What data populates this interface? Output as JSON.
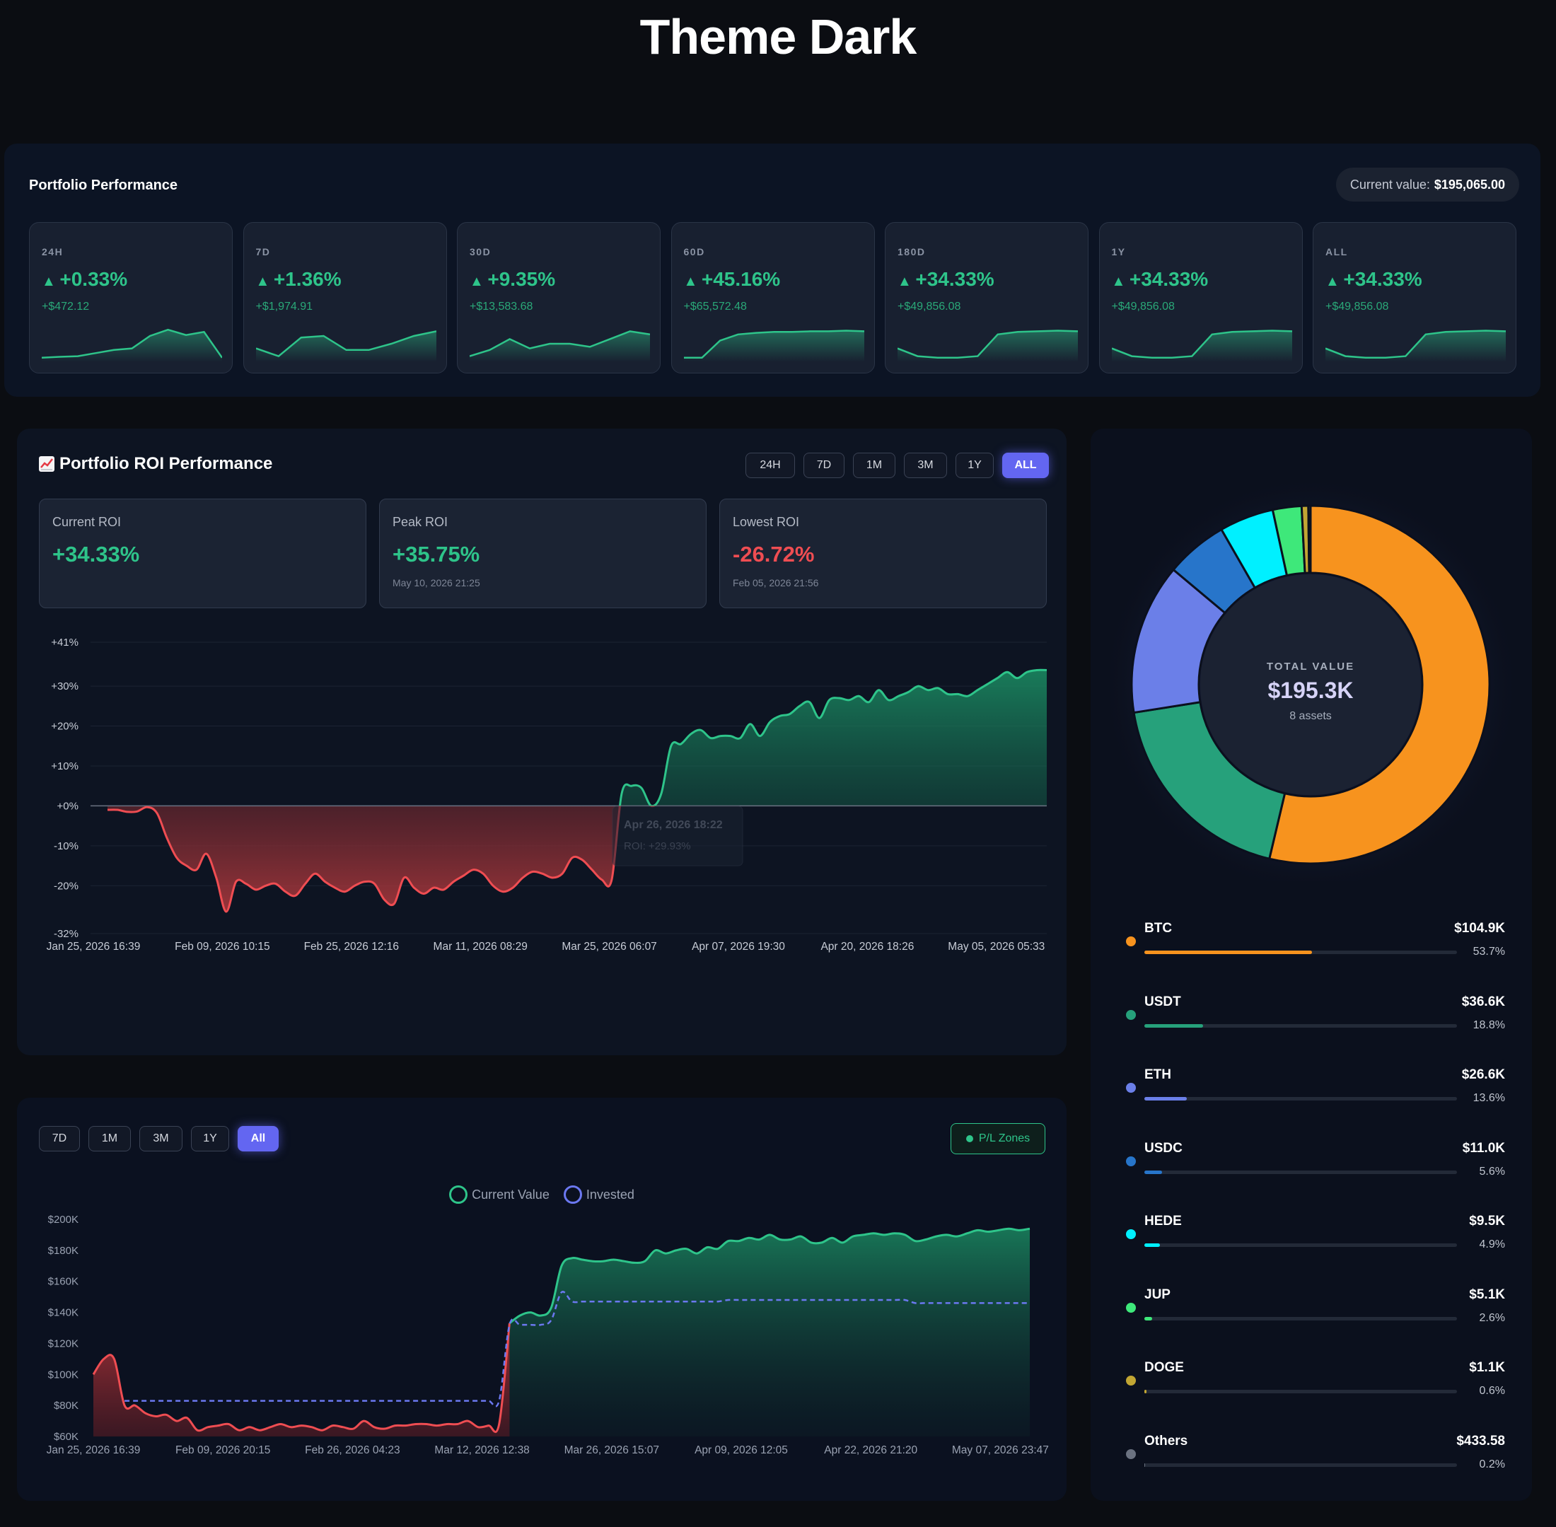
{
  "page_title": "Theme Dark",
  "performance": {
    "title": "Portfolio Performance",
    "current_label": "Current value:",
    "current_value": "$195,065.00",
    "periods": [
      {
        "label": "24H",
        "pct": "+0.33%",
        "usd": "+$472.12",
        "spark": [
          0.05,
          0.08,
          0.1,
          0.2,
          0.3,
          0.35,
          0.75,
          0.95,
          0.78,
          0.88,
          0.05
        ]
      },
      {
        "label": "7D",
        "pct": "+1.36%",
        "usd": "+$1,974.91",
        "spark": [
          0.35,
          0.1,
          0.7,
          0.75,
          0.3,
          0.3,
          0.5,
          0.75,
          0.9
        ]
      },
      {
        "label": "30D",
        "pct": "+9.35%",
        "usd": "+$13,583.68",
        "spark": [
          0.1,
          0.3,
          0.65,
          0.35,
          0.5,
          0.5,
          0.4,
          0.65,
          0.9,
          0.8
        ]
      },
      {
        "label": "60D",
        "pct": "+45.16%",
        "usd": "+$65,572.48",
        "spark": [
          0.05,
          0.05,
          0.6,
          0.8,
          0.85,
          0.88,
          0.88,
          0.9,
          0.9,
          0.92,
          0.9
        ]
      },
      {
        "label": "180D",
        "pct": "+34.33%",
        "usd": "+$49,856.08",
        "spark": [
          0.35,
          0.1,
          0.05,
          0.05,
          0.1,
          0.8,
          0.88,
          0.9,
          0.92,
          0.9
        ]
      },
      {
        "label": "1Y",
        "pct": "+34.33%",
        "usd": "+$49,856.08",
        "spark": [
          0.35,
          0.1,
          0.05,
          0.05,
          0.1,
          0.8,
          0.88,
          0.9,
          0.92,
          0.9
        ]
      },
      {
        "label": "ALL",
        "pct": "+34.33%",
        "usd": "+$49,856.08",
        "spark": [
          0.35,
          0.1,
          0.05,
          0.05,
          0.1,
          0.8,
          0.88,
          0.9,
          0.92,
          0.9
        ]
      }
    ]
  },
  "roi": {
    "icon": "chart-increasing-icon",
    "title": "Portfolio ROI Performance",
    "ranges": [
      "24H",
      "7D",
      "1M",
      "3M",
      "1Y",
      "ALL"
    ],
    "active_range": "ALL",
    "stats": [
      {
        "label": "Current ROI",
        "value": "+34.33%",
        "date": "",
        "tone": "green"
      },
      {
        "label": "Peak ROI",
        "value": "+35.75%",
        "date": "May 10, 2026 21:25",
        "tone": "green"
      },
      {
        "label": "Lowest ROI",
        "value": "-26.72%",
        "date": "Feb 05, 2026 21:56",
        "tone": "red"
      }
    ],
    "tooltip": {
      "date": "Apr 26, 2026 18:22",
      "text": "ROI: +29.93%"
    }
  },
  "chart_data": [
    {
      "type": "area",
      "title": "Portfolio ROI Performance",
      "y_tick_labels": [
        "+41%",
        "+30%",
        "+20%",
        "+10%",
        "+0%",
        "-10%",
        "-20%",
        "-32%"
      ],
      "y_ticks": [
        41,
        30,
        20,
        10,
        0,
        -10,
        -20,
        -32
      ],
      "x_tick_labels": [
        "Jan 25, 2026 16:39",
        "Feb 09, 2026 10:15",
        "Feb 25, 2026 12:16",
        "Mar 11, 2026 08:29",
        "Mar 25, 2026 06:07",
        "Apr 07, 2026 19:30",
        "Apr 20, 2026 18:26",
        "May 05, 2026 05:33"
      ],
      "ylim": [
        -32,
        41
      ],
      "series": [
        {
          "values": [
            -1,
            -1,
            -1.5,
            -1.4,
            -0.3,
            -1.8,
            -8,
            -13,
            -15,
            -16,
            -12,
            -18,
            -26.5,
            -19,
            -19.5,
            -21,
            -20,
            -19.5,
            -21.5,
            -22.5,
            -19.5,
            -17,
            -19,
            -20.5,
            -21.5,
            -20,
            -19,
            -19.5,
            -23.5,
            -24.5,
            -18,
            -20.5,
            -22,
            -20.5,
            -21,
            -19,
            -17.5,
            -16,
            -17,
            -20,
            -21.5,
            -20.5,
            -18,
            -16.5,
            -17,
            -18,
            -17,
            -13,
            -13.5,
            -16,
            -18.5,
            -18.5,
            3,
            5,
            4.5,
            0,
            3,
            15,
            15.5,
            18,
            19,
            17,
            17.5,
            17.5,
            17,
            20.5,
            17.5,
            21,
            22.5,
            23,
            25,
            26,
            22,
            26.5,
            27,
            26.5,
            27.5,
            26,
            29,
            26.5,
            27.5,
            28.5,
            30,
            29,
            29.5,
            28,
            28,
            27.5,
            29,
            30.5,
            32,
            33.5,
            32,
            33.5,
            34,
            34
          ]
        }
      ]
    },
    {
      "type": "area",
      "title": "",
      "legend": [
        "Current Value",
        "Invested"
      ],
      "y_tick_labels": [
        "$200K",
        "$180K",
        "$160K",
        "$140K",
        "$120K",
        "$100K",
        "$80K",
        "$60K"
      ],
      "y_ticks": [
        200,
        180,
        160,
        140,
        120,
        100,
        80,
        60
      ],
      "x_tick_labels": [
        "Jan 25, 2026 16:39",
        "Feb 09, 2026 20:15",
        "Feb 26, 2026 04:23",
        "Mar 12, 2026 12:38",
        "Mar 26, 2026 15:07",
        "Apr 09, 2026 12:05",
        "Apr 22, 2026 21:20",
        "May 07, 2026 23:47"
      ],
      "ylim": [
        60,
        200
      ],
      "series": [
        {
          "name": "Current Value",
          "values": [
            100,
            110,
            110,
            80,
            80,
            75,
            73,
            74,
            70,
            72,
            64,
            66,
            67,
            68,
            64,
            66,
            64,
            66,
            68,
            66,
            67,
            66,
            64,
            67,
            66,
            65,
            70,
            66,
            65,
            67,
            67,
            68,
            68,
            67,
            68,
            68,
            70,
            66,
            67,
            68,
            133,
            138,
            140,
            138,
            143,
            170,
            175,
            174,
            173,
            173,
            174,
            173,
            172,
            173,
            180,
            178,
            180,
            181,
            178,
            182,
            181,
            186,
            186,
            188,
            187,
            190,
            187,
            187,
            189,
            185,
            185,
            188,
            185,
            189,
            190,
            191,
            190,
            191,
            190,
            186,
            187,
            189,
            190,
            189,
            191,
            193,
            192,
            193,
            194,
            193,
            194
          ]
        },
        {
          "name": "Invested",
          "values": [
            null,
            null,
            null,
            83,
            83,
            83,
            83,
            83,
            83,
            83,
            83,
            83,
            83,
            83,
            83,
            83,
            83,
            83,
            83,
            83,
            83,
            83,
            83,
            83,
            83,
            83,
            83,
            83,
            83,
            83,
            83,
            83,
            83,
            83,
            83,
            83,
            83,
            83,
            83,
            83,
            132,
            132,
            132,
            132,
            135,
            153,
            147,
            147,
            147,
            147,
            147,
            147,
            147,
            147,
            147,
            147,
            147,
            147,
            147,
            147,
            147,
            148,
            148,
            148,
            148,
            148,
            148,
            148,
            148,
            148,
            148,
            148,
            148,
            148,
            148,
            148,
            148,
            148,
            148,
            146,
            146,
            146,
            146,
            146,
            146,
            146,
            146,
            146,
            146,
            146,
            146
          ]
        }
      ]
    },
    {
      "type": "pie",
      "center_label": "TOTAL VALUE",
      "center_value": "$195.3K",
      "center_sub": "8 assets",
      "categories": [
        "BTC",
        "USDT",
        "ETH",
        "USDC",
        "HEDE",
        "JUP",
        "DOGE",
        "Others"
      ],
      "values": [
        53.7,
        18.8,
        13.6,
        5.6,
        4.9,
        2.6,
        0.6,
        0.2
      ]
    }
  ],
  "value_chart": {
    "ranges": [
      "7D",
      "1M",
      "3M",
      "1Y",
      "All"
    ],
    "active_range": "All",
    "pl_zones_label": "P/L Zones"
  },
  "allocation": {
    "assets": [
      {
        "name": "BTC",
        "value": "$104.9K",
        "pct": "53.7%",
        "fraction": 0.537,
        "color": "#f7931e"
      },
      {
        "name": "USDT",
        "value": "$36.6K",
        "pct": "18.8%",
        "fraction": 0.188,
        "color": "#26a17b"
      },
      {
        "name": "ETH",
        "value": "$26.6K",
        "pct": "13.6%",
        "fraction": 0.136,
        "color": "#6b7fe8"
      },
      {
        "name": "USDC",
        "value": "$11.0K",
        "pct": "5.6%",
        "fraction": 0.056,
        "color": "#2775ca"
      },
      {
        "name": "HEDE",
        "value": "$9.5K",
        "pct": "4.9%",
        "fraction": 0.049,
        "color": "#00f0ff"
      },
      {
        "name": "JUP",
        "value": "$5.1K",
        "pct": "2.6%",
        "fraction": 0.026,
        "color": "#3ee87a"
      },
      {
        "name": "DOGE",
        "value": "$1.1K",
        "pct": "0.6%",
        "fraction": 0.006,
        "color": "#c2a633"
      },
      {
        "name": "Others",
        "value": "$433.58",
        "pct": "0.2%",
        "fraction": 0.002,
        "color": "#6b7280"
      }
    ]
  },
  "colors": {
    "green": "#2ec48a",
    "red": "#ef4d52",
    "accent": "#6366f1",
    "invested": "#6b78f0"
  }
}
